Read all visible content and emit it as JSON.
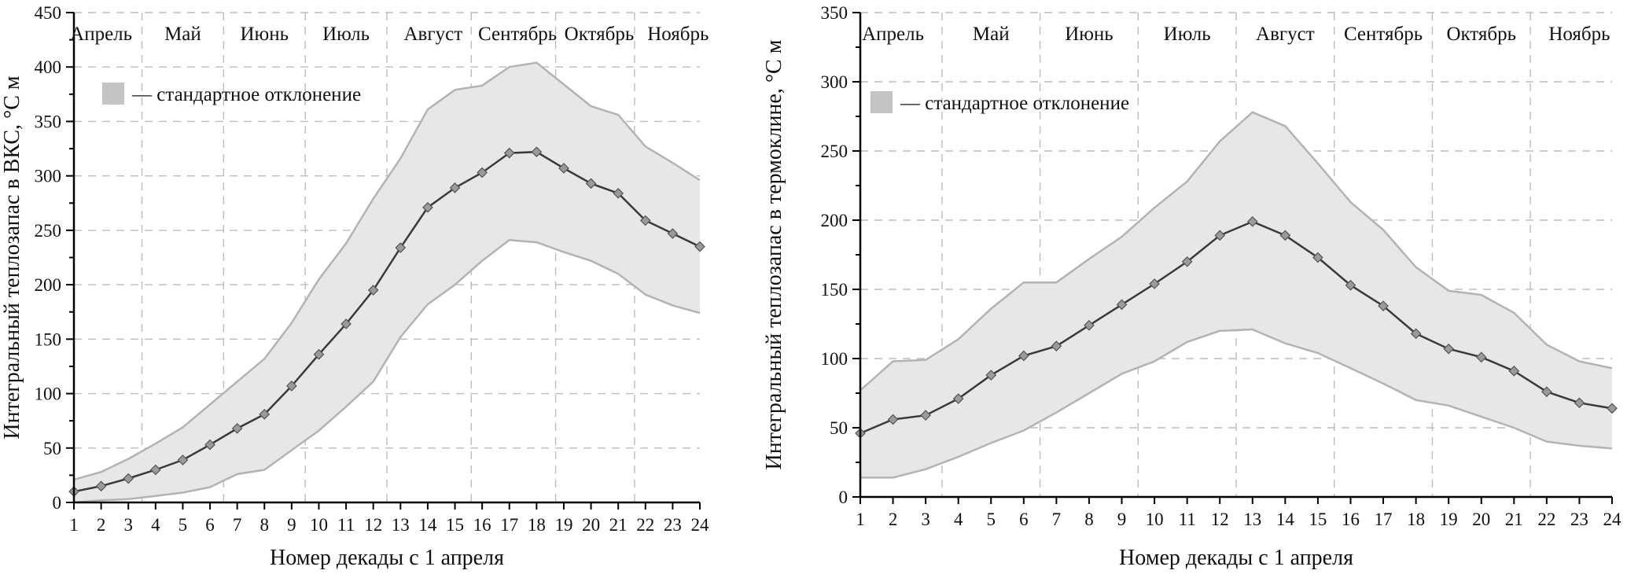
{
  "chart_data": [
    {
      "type": "area",
      "xlabel": "Номер декады с 1 апреля",
      "ylabel": "Интегральный теплозапас в ВКС, °С м",
      "ylim": [
        0,
        450
      ],
      "yticks": [
        0,
        50,
        100,
        150,
        200,
        250,
        300,
        350,
        400,
        450
      ],
      "x": [
        1,
        2,
        3,
        4,
        5,
        6,
        7,
        8,
        9,
        10,
        11,
        12,
        13,
        14,
        15,
        16,
        17,
        18,
        19,
        20,
        21,
        22,
        23,
        24
      ],
      "mean": [
        10,
        15,
        22,
        30,
        39,
        53,
        68,
        81,
        107,
        136,
        164,
        195,
        234,
        271,
        289,
        303,
        321,
        322,
        307,
        293,
        284,
        259,
        247,
        235
      ],
      "upper": [
        21,
        28,
        40,
        54,
        69,
        90,
        111,
        132,
        165,
        205,
        238,
        279,
        316,
        361,
        379,
        383,
        400,
        404,
        384,
        364,
        356,
        327,
        312,
        296
      ],
      "lower": [
        0,
        2,
        3,
        6,
        9,
        14,
        26,
        30,
        48,
        66,
        88,
        111,
        152,
        182,
        200,
        222,
        241,
        239,
        230,
        222,
        210,
        191,
        181,
        174
      ],
      "months": [
        {
          "name": "Апрель",
          "at": 2.0
        },
        {
          "name": "Май",
          "at": 5.0
        },
        {
          "name": "Июнь",
          "at": 8.0
        },
        {
          "name": "Июль",
          "at": 11.0
        },
        {
          "name": "Август",
          "at": 14.2
        },
        {
          "name": "Сентябрь",
          "at": 17.3
        },
        {
          "name": "Октябрь",
          "at": 20.3
        },
        {
          "name": "Ноябрь",
          "at": 23.2
        }
      ],
      "month_boundaries": [
        3.5,
        6.5,
        9.5,
        12.5,
        15.6,
        18.7,
        21.6
      ],
      "legend": "— стандартное отклонение",
      "grid": true
    },
    {
      "type": "area",
      "xlabel": "Номер декады с 1 апреля",
      "ylabel": "Интегральный теплозапас в термоклине, °С м",
      "ylim": [
        0,
        350
      ],
      "yticks": [
        0,
        50,
        100,
        150,
        200,
        250,
        300,
        350
      ],
      "x": [
        1,
        2,
        3,
        4,
        5,
        6,
        7,
        8,
        9,
        10,
        11,
        12,
        13,
        14,
        15,
        16,
        17,
        18,
        19,
        20,
        21,
        22,
        23,
        24
      ],
      "mean": [
        46,
        56,
        59,
        71,
        88,
        102,
        109,
        124,
        139,
        154,
        170,
        189,
        199,
        189,
        173,
        153,
        138,
        118,
        107,
        101,
        91,
        76,
        68,
        64
      ],
      "upper": [
        77,
        98,
        99,
        114,
        136,
        155,
        155,
        172,
        188,
        209,
        228,
        257,
        278,
        268,
        241,
        213,
        193,
        166,
        149,
        146,
        133,
        110,
        98,
        93
      ],
      "lower": [
        14,
        14,
        20,
        29,
        39,
        48,
        61,
        75,
        89,
        98,
        112,
        120,
        121,
        111,
        104,
        93,
        82,
        70,
        66,
        58,
        50,
        40,
        37,
        35
      ],
      "months": [
        {
          "name": "Апрель",
          "at": 2.0
        },
        {
          "name": "Май",
          "at": 5.0
        },
        {
          "name": "Июнь",
          "at": 8.0
        },
        {
          "name": "Июль",
          "at": 11.0
        },
        {
          "name": "Август",
          "at": 14.0
        },
        {
          "name": "Сентябрь",
          "at": 17.0
        },
        {
          "name": "Октябрь",
          "at": 20.0
        },
        {
          "name": "Ноябрь",
          "at": 23.0
        }
      ],
      "month_boundaries": [
        3.5,
        6.5,
        9.5,
        12.5,
        15.5,
        18.5,
        21.5
      ],
      "legend": "— стандартное отклонение",
      "grid": true
    }
  ]
}
